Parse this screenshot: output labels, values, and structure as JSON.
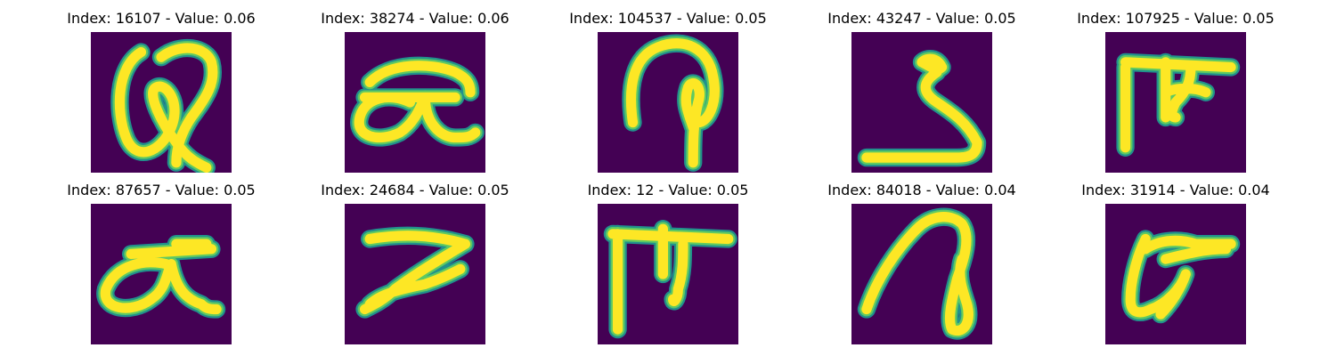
{
  "panels": [
    {
      "title": "Index: 16107 - Value: 0.06"
    },
    {
      "title": "Index: 38274 - Value: 0.06"
    },
    {
      "title": "Index: 104537 - Value: 0.05"
    },
    {
      "title": "Index: 43247 - Value: 0.05"
    },
    {
      "title": "Index: 107925 - Value: 0.05"
    },
    {
      "title": "Index: 87657 - Value: 0.05"
    },
    {
      "title": "Index: 24684 - Value: 0.05"
    },
    {
      "title": "Index: 12 - Value: 0.05"
    },
    {
      "title": "Index: 84018 - Value: 0.04"
    },
    {
      "title": "Index: 31914 - Value: 0.04"
    }
  ],
  "colors": {
    "background": "#440154",
    "stroke_core": "#fde725",
    "stroke_mid": "#5ec962",
    "stroke_edge": "#21918c"
  }
}
